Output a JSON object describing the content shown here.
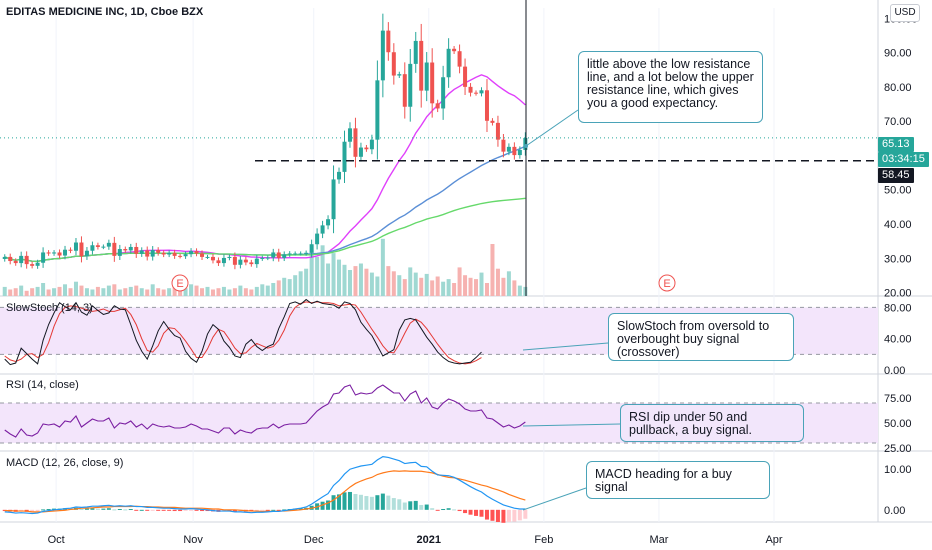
{
  "header": {
    "symbol_title": "EDITAS MEDICINE INC, 1D, Cboe BZX",
    "currency": "USD"
  },
  "colors": {
    "up": "#26a69a",
    "down": "#ef5350",
    "ma_fast": "#e040fb",
    "ma_mid": "#5b8fd6",
    "ma_slow": "#66d96b",
    "stoch_k": "#131722",
    "stoch_d": "#e53935",
    "rsi_line": "#7b1fa2",
    "macd_line": "#2196f3",
    "signal_line": "#ff7a1a",
    "band_fill": "#f3e5fb",
    "note_border": "#4aa3b8"
  },
  "chart_data": [
    {
      "type": "candlestick",
      "name": "price",
      "x_labels": [
        "Oct",
        "Nov",
        "Dec",
        "2021",
        "Feb",
        "Mar",
        "Apr"
      ],
      "y_ticks": [
        20,
        30,
        40,
        50,
        60,
        70,
        80,
        90,
        100
      ],
      "ylim": [
        19,
        103
      ],
      "last_price": "65.13",
      "countdown": "03:34:15",
      "support_level": "58.45",
      "earnings_markers": [
        "E",
        "E"
      ],
      "dashed_support_value": 58.45,
      "series": [
        {
          "name": "Close",
          "values": [
            30.4,
            29.2,
            28.6,
            30.7,
            28.3,
            27.8,
            28.7,
            31.7,
            31.4,
            31.7,
            30.8,
            32.5,
            32.2,
            34.6,
            30.6,
            32.2,
            33.8,
            33.3,
            33.4,
            34.5,
            30.7,
            32.7,
            32.3,
            33.3,
            31.3,
            32.3,
            30.5,
            32.4,
            31.6,
            31.1,
            31.6,
            30.7,
            30.6,
            31.2,
            32.1,
            31.4,
            30.4,
            30.4,
            29.4,
            28.6,
            30.1,
            30.4,
            28.1,
            29.6,
            28.8,
            28.3,
            29.9,
            30.1,
            30.2,
            31.7,
            30.1,
            31.1,
            31.4,
            31.4,
            31.4,
            31.6,
            34.1,
            37.2,
            39.6,
            41.4,
            53.0,
            55.2,
            64.0,
            67.9,
            59.6,
            62.3,
            61.8,
            64.6,
            81.9,
            96.4,
            90.1,
            83.3,
            83.7,
            74.2,
            86.7,
            93.4,
            78.9,
            87.1,
            75.2,
            73.7,
            82.8,
            91.1,
            90.4,
            85.9,
            80.0,
            78.3,
            78.1,
            79.0,
            70.1,
            69.5,
            64.6,
            61.1,
            62.5,
            60.1,
            61.6,
            65.1
          ]
        },
        {
          "name": "Volume",
          "values": [
            0.7,
            0.5,
            0.6,
            0.8,
            0.4,
            0.6,
            0.7,
            1.0,
            0.5,
            0.6,
            0.7,
            0.9,
            0.6,
            1.1,
            0.8,
            0.6,
            0.5,
            0.7,
            0.6,
            0.8,
            0.9,
            0.5,
            0.6,
            0.7,
            0.8,
            0.6,
            0.5,
            0.9,
            0.6,
            0.5,
            0.6,
            0.7,
            0.5,
            0.6,
            0.9,
            0.8,
            0.6,
            0.7,
            0.5,
            0.6,
            0.7,
            0.5,
            0.6,
            0.8,
            0.6,
            0.5,
            0.7,
            0.9,
            0.8,
            1.0,
            1.2,
            1.4,
            1.3,
            1.6,
            1.9,
            2.1,
            3.5,
            3.0,
            3.9,
            2.5,
            3.3,
            2.8,
            2.4,
            2.0,
            2.3,
            2.5,
            2.1,
            1.8,
            1.5,
            4.4,
            2.3,
            1.9,
            1.6,
            1.3,
            2.2,
            1.8,
            1.4,
            1.7,
            1.2,
            1.5,
            1.1,
            1.3,
            1.0,
            2.2,
            1.6,
            1.4,
            1.3,
            1.8,
            1.0,
            4.0,
            2.1,
            1.4,
            1.9,
            1.2,
            0.8,
            0.7
          ]
        }
      ]
    },
    {
      "type": "line",
      "name": "SlowStoch (14, 3)",
      "y_ticks": [
        0,
        40,
        80
      ],
      "y_tick_labels": [
        "0.00",
        "40.00",
        "80.00"
      ],
      "ylim": [
        -5,
        92
      ],
      "band": [
        20,
        80
      ],
      "series": [
        {
          "name": "%K",
          "values": [
            14,
            7,
            9,
            28,
            21,
            14,
            8,
            38,
            58,
            73,
            86,
            81,
            77,
            86,
            74,
            70,
            82,
            76,
            71,
            73,
            82,
            78,
            77,
            58,
            38,
            24,
            14,
            31,
            50,
            62,
            52,
            44,
            41,
            24,
            15,
            10,
            24,
            46,
            58,
            52,
            37,
            29,
            18,
            16,
            33,
            39,
            30,
            25,
            30,
            33,
            53,
            68,
            85,
            87,
            84,
            90,
            85,
            88,
            85,
            84,
            83,
            79,
            87,
            85,
            77,
            61,
            52,
            44,
            31,
            18,
            22,
            26,
            51,
            64,
            66,
            64,
            53,
            42,
            33,
            23,
            16,
            11,
            9,
            8,
            9,
            10,
            16,
            23
          ]
        },
        {
          "name": "%D",
          "values": [
            18,
            13,
            11,
            14,
            20,
            21,
            16,
            20,
            35,
            56,
            72,
            80,
            82,
            81,
            79,
            77,
            75,
            76,
            78,
            75,
            75,
            77,
            79,
            71,
            58,
            40,
            25,
            23,
            31,
            47,
            54,
            53,
            46,
            37,
            27,
            16,
            16,
            27,
            42,
            52,
            49,
            39,
            28,
            21,
            22,
            29,
            34,
            31,
            28,
            30,
            38,
            51,
            69,
            80,
            85,
            87,
            86,
            87,
            86,
            86,
            85,
            82,
            83,
            84,
            83,
            74,
            63,
            52,
            42,
            31,
            23,
            22,
            33,
            47,
            60,
            65,
            61,
            53,
            43,
            33,
            24,
            16,
            12,
            9,
            8,
            9,
            12,
            16
          ]
        }
      ]
    },
    {
      "type": "line",
      "name": "RSI (14, close)",
      "y_ticks": [
        25,
        50,
        75
      ],
      "y_tick_labels": [
        "25.00",
        "50.00",
        "75.00"
      ],
      "ylim": [
        22,
        97
      ],
      "band": [
        30,
        70
      ],
      "series": [
        {
          "name": "RSI",
          "values": [
            43,
            39,
            36,
            44,
            38,
            37,
            40,
            49,
            48,
            49,
            46,
            52,
            51,
            57,
            46,
            50,
            54,
            52,
            52,
            55,
            45,
            50,
            49,
            52,
            46,
            49,
            44,
            49,
            47,
            46,
            47,
            45,
            45,
            46,
            49,
            47,
            44,
            44,
            42,
            40,
            45,
            45,
            39,
            43,
            41,
            40,
            44,
            45,
            45,
            49,
            45,
            48,
            49,
            49,
            49,
            50,
            56,
            62,
            66,
            69,
            79,
            80,
            86,
            88,
            78,
            80,
            79,
            80,
            85,
            88,
            84,
            80,
            80,
            72,
            79,
            82,
            70,
            75,
            66,
            64,
            70,
            74,
            72,
            69,
            64,
            62,
            62,
            63,
            55,
            54,
            50,
            46,
            48,
            45,
            47,
            51
          ]
        }
      ]
    },
    {
      "type": "bar+line",
      "name": "MACD (12, 26, close, 9)",
      "y_ticks": [
        0,
        10
      ],
      "y_tick_labels": [
        "0.00",
        "10.00"
      ],
      "ylim": [
        -3,
        14
      ],
      "series": [
        {
          "name": "Histogram",
          "values": [
            -0.3,
            -0.4,
            -0.5,
            -0.4,
            -0.5,
            -0.4,
            -0.3,
            0.1,
            0.2,
            0.3,
            0.3,
            0.4,
            0.3,
            0.5,
            0.2,
            0.3,
            0.4,
            0.3,
            0.3,
            0.4,
            0.1,
            0.2,
            0.1,
            0.2,
            -0.1,
            0.0,
            -0.2,
            -0.1,
            -0.2,
            -0.2,
            -0.2,
            -0.3,
            -0.3,
            -0.2,
            -0.1,
            -0.2,
            -0.3,
            -0.3,
            -0.4,
            -0.5,
            -0.3,
            -0.3,
            -0.5,
            -0.4,
            -0.4,
            -0.4,
            -0.3,
            -0.2,
            -0.2,
            0.0,
            -0.1,
            0.1,
            0.2,
            0.3,
            0.4,
            0.5,
            1.0,
            1.6,
            2.0,
            2.3,
            3.6,
            3.8,
            4.3,
            4.4,
            3.9,
            3.7,
            3.4,
            3.2,
            3.6,
            4.0,
            3.5,
            2.9,
            2.6,
            1.8,
            2.1,
            2.2,
            1.2,
            1.3,
            0.4,
            -0.1,
            0.2,
            0.4,
            0.1,
            -0.3,
            -0.8,
            -1.2,
            -1.5,
            -1.7,
            -2.4,
            -2.7,
            -3.0,
            -3.2,
            -3.0,
            -2.9,
            -2.6,
            -2.2
          ]
        },
        {
          "name": "MACD",
          "values": [
            -0.5,
            -0.6,
            -0.8,
            -0.7,
            -0.8,
            -0.9,
            -0.8,
            -0.4,
            -0.2,
            0.0,
            0.1,
            0.3,
            0.4,
            0.7,
            0.6,
            0.7,
            0.9,
            0.9,
            1.0,
            1.1,
            0.9,
            1.0,
            0.9,
            1.0,
            0.8,
            0.8,
            0.6,
            0.6,
            0.5,
            0.4,
            0.4,
            0.3,
            0.2,
            0.2,
            0.3,
            0.2,
            0.1,
            0.0,
            -0.2,
            -0.3,
            -0.3,
            -0.3,
            -0.5,
            -0.5,
            -0.6,
            -0.7,
            -0.6,
            -0.6,
            -0.5,
            -0.4,
            -0.4,
            -0.2,
            0.0,
            0.2,
            0.4,
            0.7,
            1.4,
            2.3,
            3.2,
            4.0,
            6.0,
            7.2,
            8.8,
            10.0,
            10.4,
            10.8,
            11.0,
            11.2,
            12.3,
            13.1,
            12.9,
            12.5,
            12.1,
            11.4,
            11.6,
            11.7,
            10.7,
            10.6,
            9.5,
            8.6,
            8.5,
            8.4,
            8.0,
            7.3,
            6.5,
            5.7,
            5.0,
            4.4,
            3.4,
            2.6,
            1.9,
            1.2,
            0.8,
            0.4,
            0.2,
            0.2
          ]
        },
        {
          "name": "Signal",
          "values": [
            -0.2,
            -0.2,
            -0.3,
            -0.3,
            -0.3,
            -0.5,
            -0.5,
            -0.5,
            -0.4,
            -0.3,
            -0.2,
            -0.1,
            0.1,
            0.2,
            0.4,
            0.4,
            0.5,
            0.6,
            0.7,
            0.7,
            0.8,
            0.8,
            0.8,
            0.8,
            0.9,
            0.8,
            0.8,
            0.7,
            0.7,
            0.6,
            0.6,
            0.6,
            0.5,
            0.4,
            0.4,
            0.4,
            0.4,
            0.3,
            0.2,
            0.2,
            0.0,
            0.0,
            0.0,
            -0.1,
            -0.2,
            -0.3,
            -0.3,
            -0.4,
            -0.3,
            -0.4,
            -0.3,
            -0.3,
            -0.2,
            -0.1,
            0.0,
            0.2,
            0.4,
            0.7,
            1.2,
            1.7,
            2.4,
            3.4,
            4.5,
            5.6,
            6.5,
            7.1,
            7.6,
            8.0,
            8.7,
            9.1,
            9.4,
            9.6,
            9.5,
            9.6,
            9.5,
            9.5,
            9.5,
            9.3,
            9.1,
            8.7,
            8.3,
            8.0,
            7.9,
            7.6,
            7.3,
            6.9,
            6.5,
            6.1,
            5.8,
            5.3,
            4.9,
            4.4,
            3.8,
            3.3,
            2.8,
            2.4
          ]
        }
      ]
    }
  ],
  "annotations": {
    "price_note": "little above the low resistance line, and a lot below the upper resistance line, which gives you a good expectancy.",
    "stoch_note": "SlowStoch from oversold to overbought buy signal (crossover)",
    "rsi_note": "RSI dip under 50 and pullback, a buy signal.",
    "macd_note": "MACD heading for a buy signal"
  }
}
